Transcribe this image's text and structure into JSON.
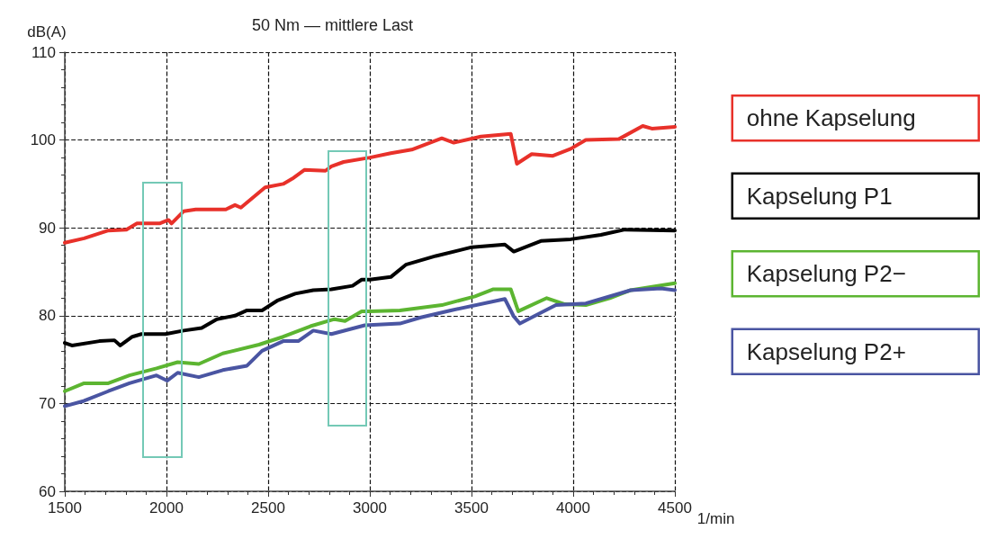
{
  "chart_data": {
    "type": "line",
    "title": "50 Nm — mittlere Last",
    "xlabel": "1/min",
    "ylabel": "dB(A)",
    "xlim": [
      1500,
      4500
    ],
    "xticks": [
      1500,
      2000,
      2500,
      3000,
      3500,
      4000,
      4500
    ],
    "ylim": [
      60,
      110
    ],
    "yticks": [
      60,
      70,
      80,
      90,
      100,
      110
    ],
    "grid": true,
    "legend": "right",
    "marker": "none",
    "line_style": "solid",
    "series": [
      {
        "name": "ohne Kapselung",
        "color": "#e8312a",
        "x": [
          1500,
          1595,
          1714,
          1803,
          1855,
          1966,
          2010,
          2025,
          2085,
          2144,
          2292,
          2337,
          2366,
          2485,
          2574,
          2619,
          2678,
          2782,
          2811,
          2871,
          3000,
          3103,
          3206,
          3354,
          3413,
          3546,
          3693,
          3723,
          3796,
          3900,
          3988,
          4062,
          4224,
          4342,
          4387,
          4500
        ],
        "values": [
          88.3,
          88.8,
          89.7,
          89.8,
          90.5,
          90.5,
          90.9,
          90.5,
          91.9,
          92.1,
          92.1,
          92.6,
          92.3,
          94.6,
          95.0,
          95.6,
          96.6,
          96.5,
          97.0,
          97.5,
          98.0,
          98.5,
          98.9,
          100.2,
          99.7,
          100.4,
          100.7,
          97.3,
          98.4,
          98.2,
          99.0,
          100.0,
          100.1,
          101.6,
          101.3,
          101.5
        ]
      },
      {
        "name": "Kapselung P1",
        "color": "#000000",
        "x": [
          1500,
          1535,
          1670,
          1744,
          1773,
          1832,
          1877,
          1995,
          2085,
          2173,
          2248,
          2337,
          2396,
          2470,
          2544,
          2633,
          2722,
          2811,
          2915,
          2960,
          3000,
          3103,
          3177,
          3325,
          3502,
          3664,
          3708,
          3841,
          3988,
          4136,
          4254,
          4500
        ],
        "values": [
          76.9,
          76.6,
          77.1,
          77.2,
          76.6,
          77.6,
          77.9,
          77.9,
          78.3,
          78.6,
          79.6,
          80.0,
          80.6,
          80.6,
          81.7,
          82.5,
          82.9,
          83.0,
          83.4,
          84.1,
          84.1,
          84.4,
          85.8,
          86.8,
          87.8,
          88.1,
          87.3,
          88.5,
          88.7,
          89.2,
          89.8,
          89.7
        ]
      },
      {
        "name": "Kapselung P2−",
        "color": "#5cb531",
        "x": [
          1500,
          1595,
          1714,
          1818,
          1951,
          2055,
          2159,
          2277,
          2455,
          2574,
          2708,
          2826,
          2878,
          2960,
          3000,
          3148,
          3354,
          3517,
          3605,
          3693,
          3730,
          3870,
          3959,
          4062,
          4180,
          4283,
          4500
        ],
        "values": [
          71.4,
          72.3,
          72.3,
          73.2,
          74.0,
          74.7,
          74.5,
          75.7,
          76.7,
          77.6,
          78.8,
          79.6,
          79.4,
          80.5,
          80.5,
          80.6,
          81.2,
          82.2,
          83.0,
          83.0,
          80.5,
          82.0,
          81.3,
          81.2,
          82.0,
          82.9,
          83.7
        ]
      },
      {
        "name": "Kapselung P2+",
        "color": "#4a55a2",
        "x": [
          1500,
          1595,
          1714,
          1818,
          1951,
          2003,
          2055,
          2159,
          2277,
          2396,
          2470,
          2574,
          2648,
          2722,
          2811,
          2975,
          3148,
          3251,
          3398,
          3664,
          3708,
          3738,
          3915,
          4062,
          4283,
          4431,
          4500
        ],
        "values": [
          69.7,
          70.3,
          71.4,
          72.3,
          73.2,
          72.6,
          73.5,
          73.0,
          73.8,
          74.3,
          76.0,
          77.1,
          77.1,
          78.3,
          77.9,
          78.9,
          79.1,
          79.8,
          80.6,
          81.9,
          79.9,
          79.1,
          81.2,
          81.4,
          82.9,
          83.1,
          82.9
        ]
      }
    ]
  }
}
